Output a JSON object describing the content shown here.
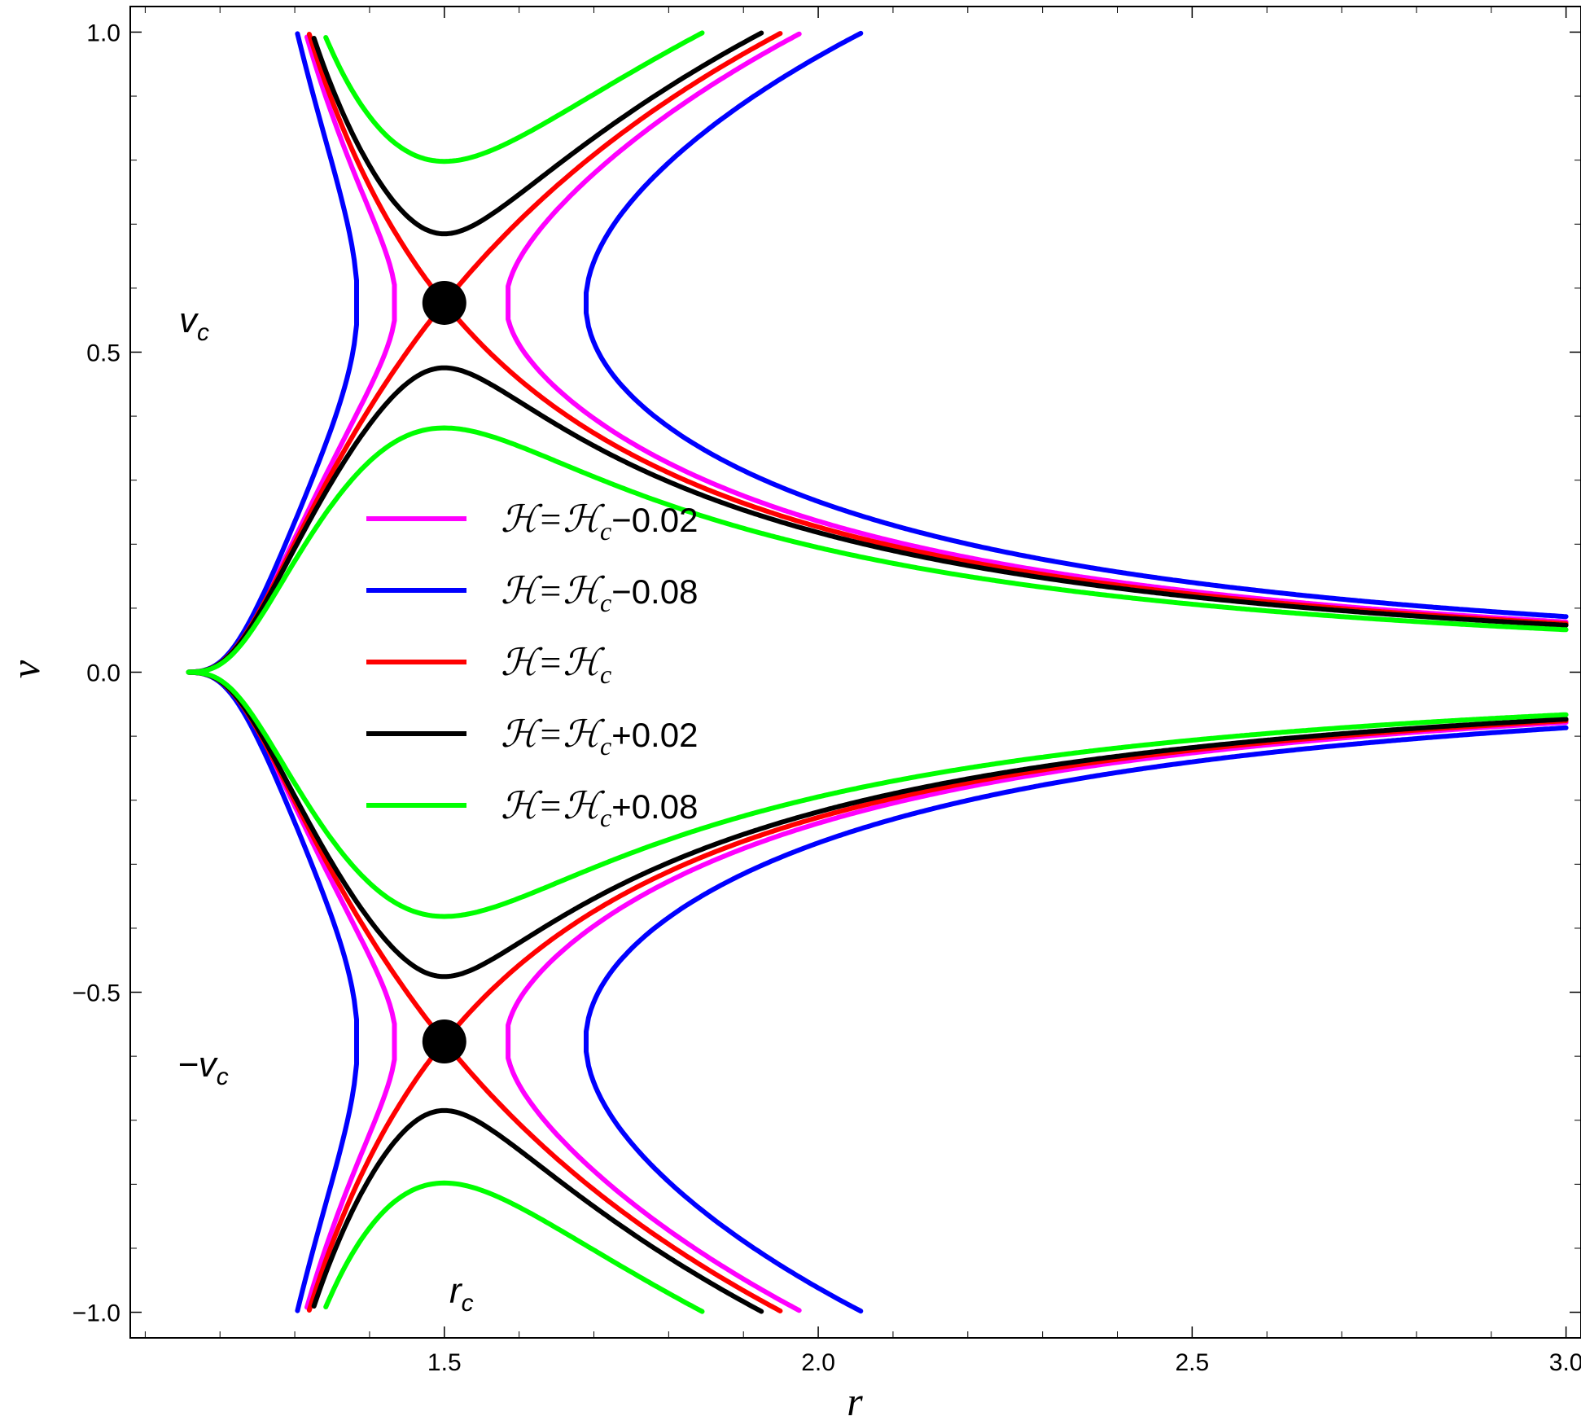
{
  "chart_data": {
    "type": "line",
    "title": "",
    "xlabel": "r",
    "ylabel": "v",
    "xlim": [
      1.08,
      3.02
    ],
    "ylim": [
      -1.04,
      1.04
    ],
    "x_ticks": [
      1.5,
      2.0,
      2.5,
      3.0
    ],
    "x_tick_labels": [
      "1.5",
      "2.0",
      "2.5",
      "3.0"
    ],
    "y_ticks": [
      -1.0,
      -0.5,
      0.0,
      0.5,
      1.0
    ],
    "y_tick_labels": [
      "−1.0",
      "−0.5",
      "0.0",
      "0.5",
      "1.0"
    ],
    "grid": false,
    "legend_position": "center-left",
    "critical_point": {
      "r": 1.5,
      "v": 0.577
    },
    "annotations": {
      "vc": {
        "main": "v",
        "sub": "c"
      },
      "neg_vc": {
        "main": "−v",
        "sub": "c"
      },
      "rc": {
        "main": "r",
        "sub": "c"
      }
    },
    "series": [
      {
        "name": "ℋ=ℋc−0.02",
        "legend_main": "ℋ=ℋ",
        "legend_sub": "c",
        "legend_tail": "−0.02",
        "color": "#ff00ff",
        "dH": -0.02,
        "upper_right_end": 0.89,
        "lower_right_end": 0.195,
        "turning_r": 1.72,
        "left_turning_r": 1.36
      },
      {
        "name": "ℋ=ℋc−0.08",
        "legend_main": "ℋ=ℋ",
        "legend_sub": "c",
        "legend_tail": "−0.08",
        "color": "#0000ff",
        "dH": -0.08,
        "upper_right_end": 0.86,
        "lower_right_end": 0.24,
        "turning_r": 2.07,
        "left_turning_r": 1.25
      },
      {
        "name": "ℋ=ℋc",
        "legend_main": "ℋ=ℋ",
        "legend_sub": "c",
        "legend_tail": "",
        "color": "#ff0000",
        "dH": 0.0,
        "upper_right_end": 0.895,
        "lower_right_end": 0.185
      },
      {
        "name": "ℋ=ℋc+0.02",
        "legend_main": "ℋ=ℋ",
        "legend_sub": "c",
        "legend_tail": "+0.02",
        "color": "#000000",
        "dH": 0.02,
        "upper_right_end": 0.905,
        "lower_right_end": 0.165,
        "upper_min_v": 0.71,
        "lower_max_v": 0.425
      },
      {
        "name": "ℋ=ℋc+0.08",
        "legend_main": "ℋ=ℋ",
        "legend_sub": "c",
        "legend_tail": "+0.08",
        "color": "#00ff00",
        "dH": 0.08,
        "upper_right_end": 0.915,
        "lower_right_end": 0.145,
        "upper_min_v": 0.77,
        "lower_max_v": 0.355
      }
    ]
  }
}
